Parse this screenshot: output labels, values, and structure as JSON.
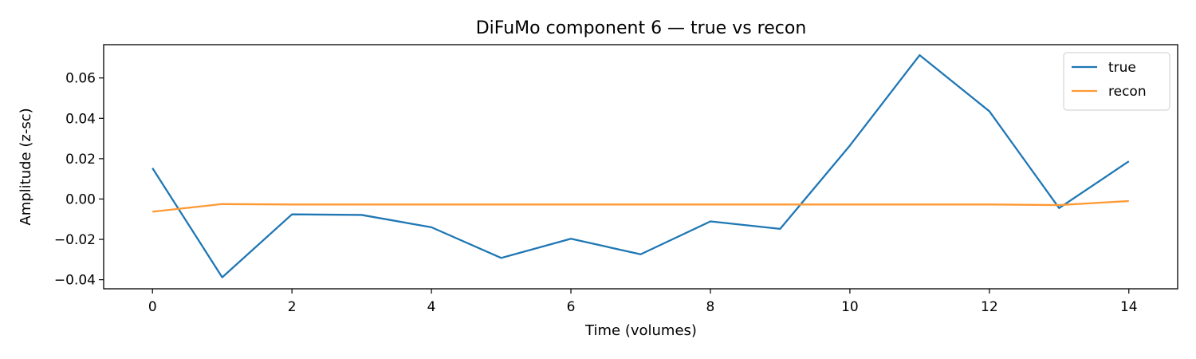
{
  "chart_data": {
    "type": "line",
    "title": "DiFuMo component 6 — true vs recon",
    "xlabel": "Time (volumes)",
    "ylabel": "Amplitude (z-sc)",
    "x": [
      0,
      1,
      2,
      3,
      4,
      5,
      6,
      7,
      8,
      9,
      10,
      11,
      12,
      13,
      14
    ],
    "xlim": [
      -0.7,
      14.7
    ],
    "ylim": [
      -0.0445,
      0.0765
    ],
    "xticks": [
      0,
      2,
      4,
      6,
      8,
      10,
      12,
      14
    ],
    "xtick_labels": [
      "0",
      "2",
      "4",
      "6",
      "8",
      "10",
      "12",
      "14"
    ],
    "yticks": [
      -0.04,
      -0.02,
      0.0,
      0.02,
      0.04,
      0.06
    ],
    "ytick_labels": [
      "−0.04",
      "−0.02",
      "0.00",
      "0.02",
      "0.04",
      "0.06"
    ],
    "grid": false,
    "legend_position": "top-right",
    "series": [
      {
        "name": "true",
        "color": "#1f77b4",
        "values": [
          0.0153,
          -0.0388,
          -0.0076,
          -0.0079,
          -0.014,
          -0.0292,
          -0.0197,
          -0.0274,
          -0.0111,
          -0.0148,
          0.0265,
          0.0713,
          0.0435,
          -0.0045,
          0.0187
        ]
      },
      {
        "name": "recon",
        "color": "#ff9933",
        "values": [
          -0.0063,
          -0.0025,
          -0.0027,
          -0.0027,
          -0.0027,
          -0.0027,
          -0.0027,
          -0.0027,
          -0.0027,
          -0.0027,
          -0.0027,
          -0.0027,
          -0.0027,
          -0.003,
          -0.001
        ]
      }
    ]
  }
}
